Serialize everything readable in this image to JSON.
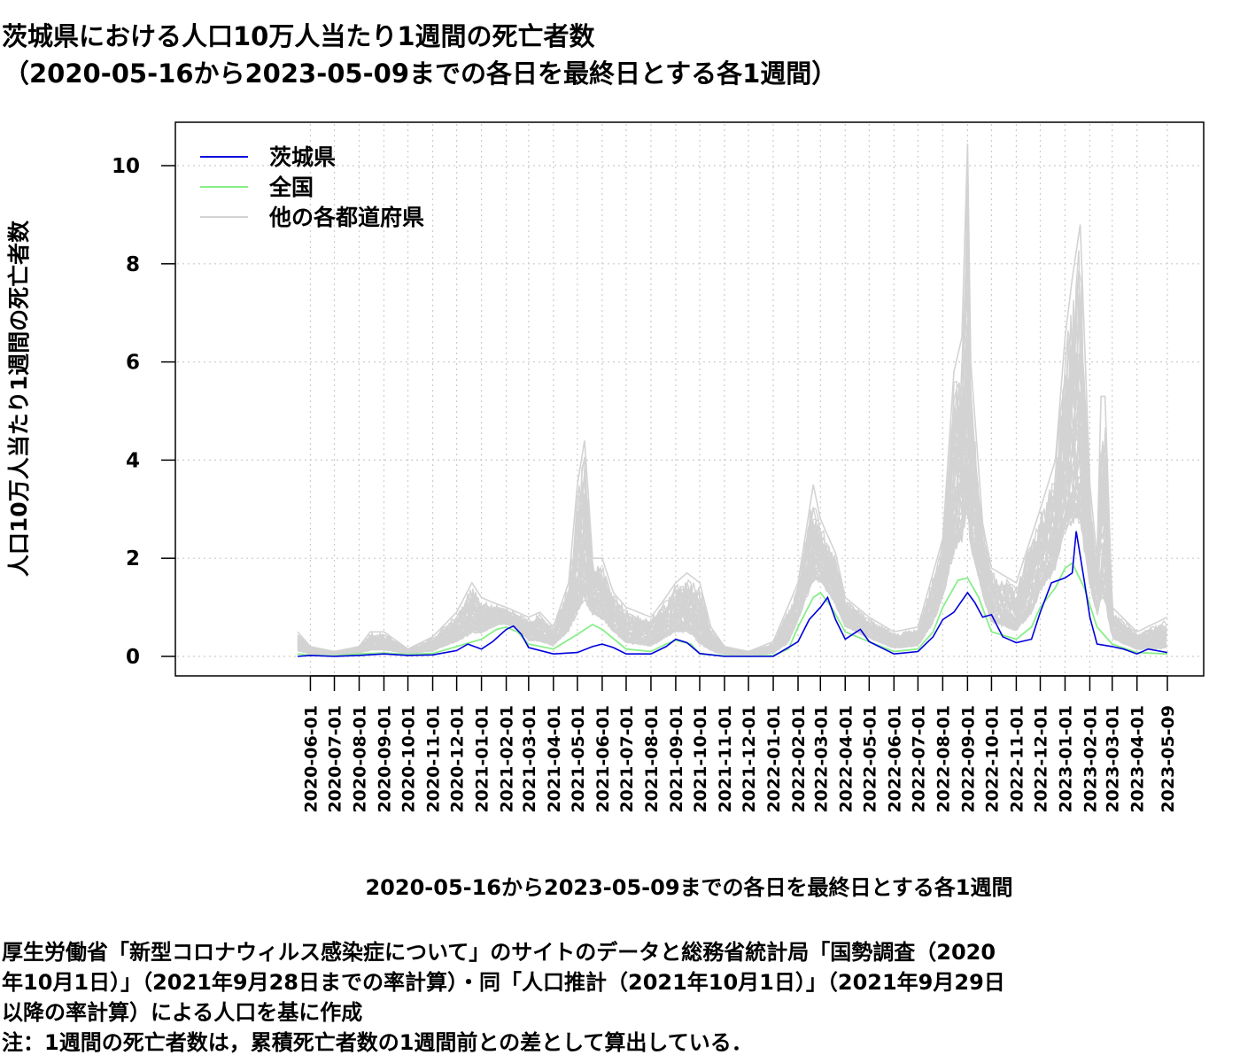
{
  "title_line1": "茨城県における人口10万人当たり1週間の死亡者数",
  "title_line2": "（2020-05-16から2023-05-09までの各日を最終日とする各1週間）",
  "notes": [
    "厚生労働省「新型コロナウィルス感染症について」のサイトのデータと総務省統計局「国勢調査（2020",
    "年10月1日）」（2021年9月28日までの率計算）・同「人口推計（2021年10月1日）」（2021年9月29日",
    "以降の率計算）による人口を基に作成",
    "注：1週間の死亡者数は，累積死亡者数の1週間前との差として算出している．"
  ],
  "chart_data": {
    "type": "line",
    "title": "茨城県における人口10万人当たり1週間の死亡者数",
    "subtitle": "（2020-05-16から2023-05-09までの各日を最終日とする各1週間）",
    "xlabel": "2020-05-16から2023-05-09までの各日を最終日とする各1週間",
    "ylabel": "人口10万人当たり1週間の死亡者数",
    "xlim": [
      "2020-05-16",
      "2023-05-09"
    ],
    "ylim": [
      0,
      10.5
    ],
    "yticks": [
      0,
      2,
      4,
      6,
      8,
      10
    ],
    "xticks": [
      "2020-06-01",
      "2020-07-01",
      "2020-08-01",
      "2020-09-01",
      "2020-10-01",
      "2020-11-01",
      "2020-12-01",
      "2021-01-01",
      "2021-02-01",
      "2021-03-01",
      "2021-04-01",
      "2021-05-01",
      "2021-06-01",
      "2021-07-01",
      "2021-08-01",
      "2021-09-01",
      "2021-10-01",
      "2021-11-01",
      "2021-12-01",
      "2022-01-01",
      "2022-02-01",
      "2022-03-01",
      "2022-04-01",
      "2022-05-01",
      "2022-06-01",
      "2022-07-01",
      "2022-08-01",
      "2022-09-01",
      "2022-10-01",
      "2022-11-01",
      "2022-12-01",
      "2023-01-01",
      "2023-02-01",
      "2023-03-01",
      "2023-04-01",
      "2023-05-09"
    ],
    "grid": true,
    "legend_position": "top-left",
    "series": [
      {
        "name": "茨城県",
        "color": "#0000dd",
        "points": [
          [
            "2020-05-16",
            0.0
          ],
          [
            "2020-06-01",
            0.02
          ],
          [
            "2020-07-01",
            0.0
          ],
          [
            "2020-08-01",
            0.02
          ],
          [
            "2020-09-01",
            0.05
          ],
          [
            "2020-10-01",
            0.02
          ],
          [
            "2020-11-01",
            0.03
          ],
          [
            "2020-12-01",
            0.12
          ],
          [
            "2020-12-15",
            0.25
          ],
          [
            "2021-01-01",
            0.15
          ],
          [
            "2021-01-15",
            0.3
          ],
          [
            "2021-02-01",
            0.55
          ],
          [
            "2021-02-10",
            0.62
          ],
          [
            "2021-02-20",
            0.45
          ],
          [
            "2021-03-01",
            0.18
          ],
          [
            "2021-04-01",
            0.05
          ],
          [
            "2021-05-01",
            0.08
          ],
          [
            "2021-05-20",
            0.2
          ],
          [
            "2021-06-01",
            0.25
          ],
          [
            "2021-06-15",
            0.18
          ],
          [
            "2021-07-01",
            0.05
          ],
          [
            "2021-08-01",
            0.05
          ],
          [
            "2021-08-20",
            0.2
          ],
          [
            "2021-09-01",
            0.35
          ],
          [
            "2021-09-15",
            0.28
          ],
          [
            "2021-10-01",
            0.06
          ],
          [
            "2021-11-01",
            0.0
          ],
          [
            "2021-12-01",
            0.0
          ],
          [
            "2022-01-01",
            0.0
          ],
          [
            "2022-02-01",
            0.3
          ],
          [
            "2022-02-15",
            0.75
          ],
          [
            "2022-03-01",
            1.0
          ],
          [
            "2022-03-10",
            1.2
          ],
          [
            "2022-03-20",
            0.75
          ],
          [
            "2022-04-01",
            0.35
          ],
          [
            "2022-04-20",
            0.55
          ],
          [
            "2022-05-01",
            0.3
          ],
          [
            "2022-06-01",
            0.05
          ],
          [
            "2022-07-01",
            0.1
          ],
          [
            "2022-07-20",
            0.4
          ],
          [
            "2022-08-01",
            0.75
          ],
          [
            "2022-08-15",
            0.9
          ],
          [
            "2022-09-01",
            1.3
          ],
          [
            "2022-09-10",
            1.1
          ],
          [
            "2022-09-20",
            0.8
          ],
          [
            "2022-10-01",
            0.85
          ],
          [
            "2022-10-15",
            0.4
          ],
          [
            "2022-11-01",
            0.28
          ],
          [
            "2022-11-20",
            0.35
          ],
          [
            "2022-12-01",
            0.9
          ],
          [
            "2022-12-15",
            1.5
          ],
          [
            "2023-01-01",
            1.6
          ],
          [
            "2023-01-10",
            1.7
          ],
          [
            "2023-01-15",
            2.55
          ],
          [
            "2023-01-25",
            1.55
          ],
          [
            "2023-02-01",
            0.8
          ],
          [
            "2023-02-10",
            0.25
          ],
          [
            "2023-03-01",
            0.2
          ],
          [
            "2023-03-15",
            0.15
          ],
          [
            "2023-04-01",
            0.05
          ],
          [
            "2023-04-15",
            0.15
          ],
          [
            "2023-05-09",
            0.08
          ]
        ]
      },
      {
        "name": "全国",
        "color": "#88ee88",
        "points": [
          [
            "2020-05-16",
            0.05
          ],
          [
            "2020-06-01",
            0.02
          ],
          [
            "2020-07-01",
            0.01
          ],
          [
            "2020-08-01",
            0.05
          ],
          [
            "2020-09-01",
            0.07
          ],
          [
            "2020-10-01",
            0.04
          ],
          [
            "2020-11-01",
            0.06
          ],
          [
            "2020-12-01",
            0.2
          ],
          [
            "2021-01-01",
            0.35
          ],
          [
            "2021-01-20",
            0.55
          ],
          [
            "2021-02-01",
            0.6
          ],
          [
            "2021-02-15",
            0.5
          ],
          [
            "2021-03-01",
            0.25
          ],
          [
            "2021-04-01",
            0.15
          ],
          [
            "2021-05-01",
            0.45
          ],
          [
            "2021-05-20",
            0.65
          ],
          [
            "2021-06-01",
            0.55
          ],
          [
            "2021-07-01",
            0.15
          ],
          [
            "2021-08-01",
            0.1
          ],
          [
            "2021-08-20",
            0.25
          ],
          [
            "2021-09-01",
            0.33
          ],
          [
            "2021-09-20",
            0.25
          ],
          [
            "2021-10-01",
            0.05
          ],
          [
            "2021-11-01",
            0.01
          ],
          [
            "2021-12-01",
            0.0
          ],
          [
            "2022-01-01",
            0.02
          ],
          [
            "2022-01-20",
            0.15
          ],
          [
            "2022-02-01",
            0.6
          ],
          [
            "2022-02-20",
            1.2
          ],
          [
            "2022-03-01",
            1.3
          ],
          [
            "2022-03-15",
            1.0
          ],
          [
            "2022-04-01",
            0.5
          ],
          [
            "2022-05-01",
            0.3
          ],
          [
            "2022-06-01",
            0.1
          ],
          [
            "2022-07-01",
            0.15
          ],
          [
            "2022-07-20",
            0.5
          ],
          [
            "2022-08-01",
            1.0
          ],
          [
            "2022-08-20",
            1.55
          ],
          [
            "2022-09-01",
            1.6
          ],
          [
            "2022-09-15",
            1.2
          ],
          [
            "2022-10-01",
            0.5
          ],
          [
            "2022-11-01",
            0.35
          ],
          [
            "2022-11-20",
            0.6
          ],
          [
            "2022-12-01",
            1.0
          ],
          [
            "2022-12-20",
            1.4
          ],
          [
            "2023-01-01",
            1.8
          ],
          [
            "2023-01-10",
            1.9
          ],
          [
            "2023-01-25",
            1.4
          ],
          [
            "2023-02-10",
            0.6
          ],
          [
            "2023-03-01",
            0.25
          ],
          [
            "2023-04-01",
            0.08
          ],
          [
            "2023-05-09",
            0.05
          ]
        ]
      },
      {
        "name": "他の各都道府県",
        "color": "#d3d3d3",
        "envelope_points": [
          [
            "2020-05-16",
            0.5
          ],
          [
            "2020-06-01",
            0.2
          ],
          [
            "2020-07-01",
            0.1
          ],
          [
            "2020-08-01",
            0.2
          ],
          [
            "2020-08-15",
            0.5
          ],
          [
            "2020-09-01",
            0.5
          ],
          [
            "2020-10-01",
            0.15
          ],
          [
            "2020-11-01",
            0.4
          ],
          [
            "2020-12-01",
            0.9
          ],
          [
            "2020-12-20",
            1.5
          ],
          [
            "2021-01-01",
            1.2
          ],
          [
            "2021-01-15",
            1.1
          ],
          [
            "2021-02-01",
            1.0
          ],
          [
            "2021-03-01",
            0.8
          ],
          [
            "2021-03-15",
            0.9
          ],
          [
            "2021-04-01",
            0.6
          ],
          [
            "2021-04-20",
            1.5
          ],
          [
            "2021-05-01",
            3.5
          ],
          [
            "2021-05-10",
            4.4
          ],
          [
            "2021-05-20",
            2.0
          ],
          [
            "2021-06-01",
            2.0
          ],
          [
            "2021-06-15",
            1.3
          ],
          [
            "2021-07-01",
            1.0
          ],
          [
            "2021-08-01",
            0.8
          ],
          [
            "2021-08-15",
            1.1
          ],
          [
            "2021-09-01",
            1.5
          ],
          [
            "2021-09-15",
            1.7
          ],
          [
            "2021-10-01",
            1.5
          ],
          [
            "2021-10-15",
            0.6
          ],
          [
            "2021-11-01",
            0.2
          ],
          [
            "2021-12-01",
            0.1
          ],
          [
            "2022-01-01",
            0.3
          ],
          [
            "2022-02-01",
            1.5
          ],
          [
            "2022-02-20",
            3.5
          ],
          [
            "2022-03-01",
            2.8
          ],
          [
            "2022-03-20",
            2.1
          ],
          [
            "2022-04-01",
            1.2
          ],
          [
            "2022-05-01",
            0.8
          ],
          [
            "2022-06-01",
            0.5
          ],
          [
            "2022-07-01",
            0.6
          ],
          [
            "2022-08-01",
            2.4
          ],
          [
            "2022-08-15",
            5.8
          ],
          [
            "2022-08-25",
            6.5
          ],
          [
            "2022-09-01",
            10.45
          ],
          [
            "2022-09-05",
            6.0
          ],
          [
            "2022-09-20",
            2.7
          ],
          [
            "2022-10-01",
            1.8
          ],
          [
            "2022-11-01",
            1.5
          ],
          [
            "2022-12-01",
            3.0
          ],
          [
            "2022-12-20",
            4.0
          ],
          [
            "2023-01-01",
            6.5
          ],
          [
            "2023-01-10",
            7.7
          ],
          [
            "2023-01-20",
            8.8
          ],
          [
            "2023-02-01",
            3.5
          ],
          [
            "2023-02-10",
            2.0
          ],
          [
            "2023-02-15",
            5.3
          ],
          [
            "2023-02-20",
            5.3
          ],
          [
            "2023-03-01",
            1.0
          ],
          [
            "2023-04-01",
            0.5
          ],
          [
            "2023-05-09",
            0.8
          ]
        ]
      }
    ]
  }
}
